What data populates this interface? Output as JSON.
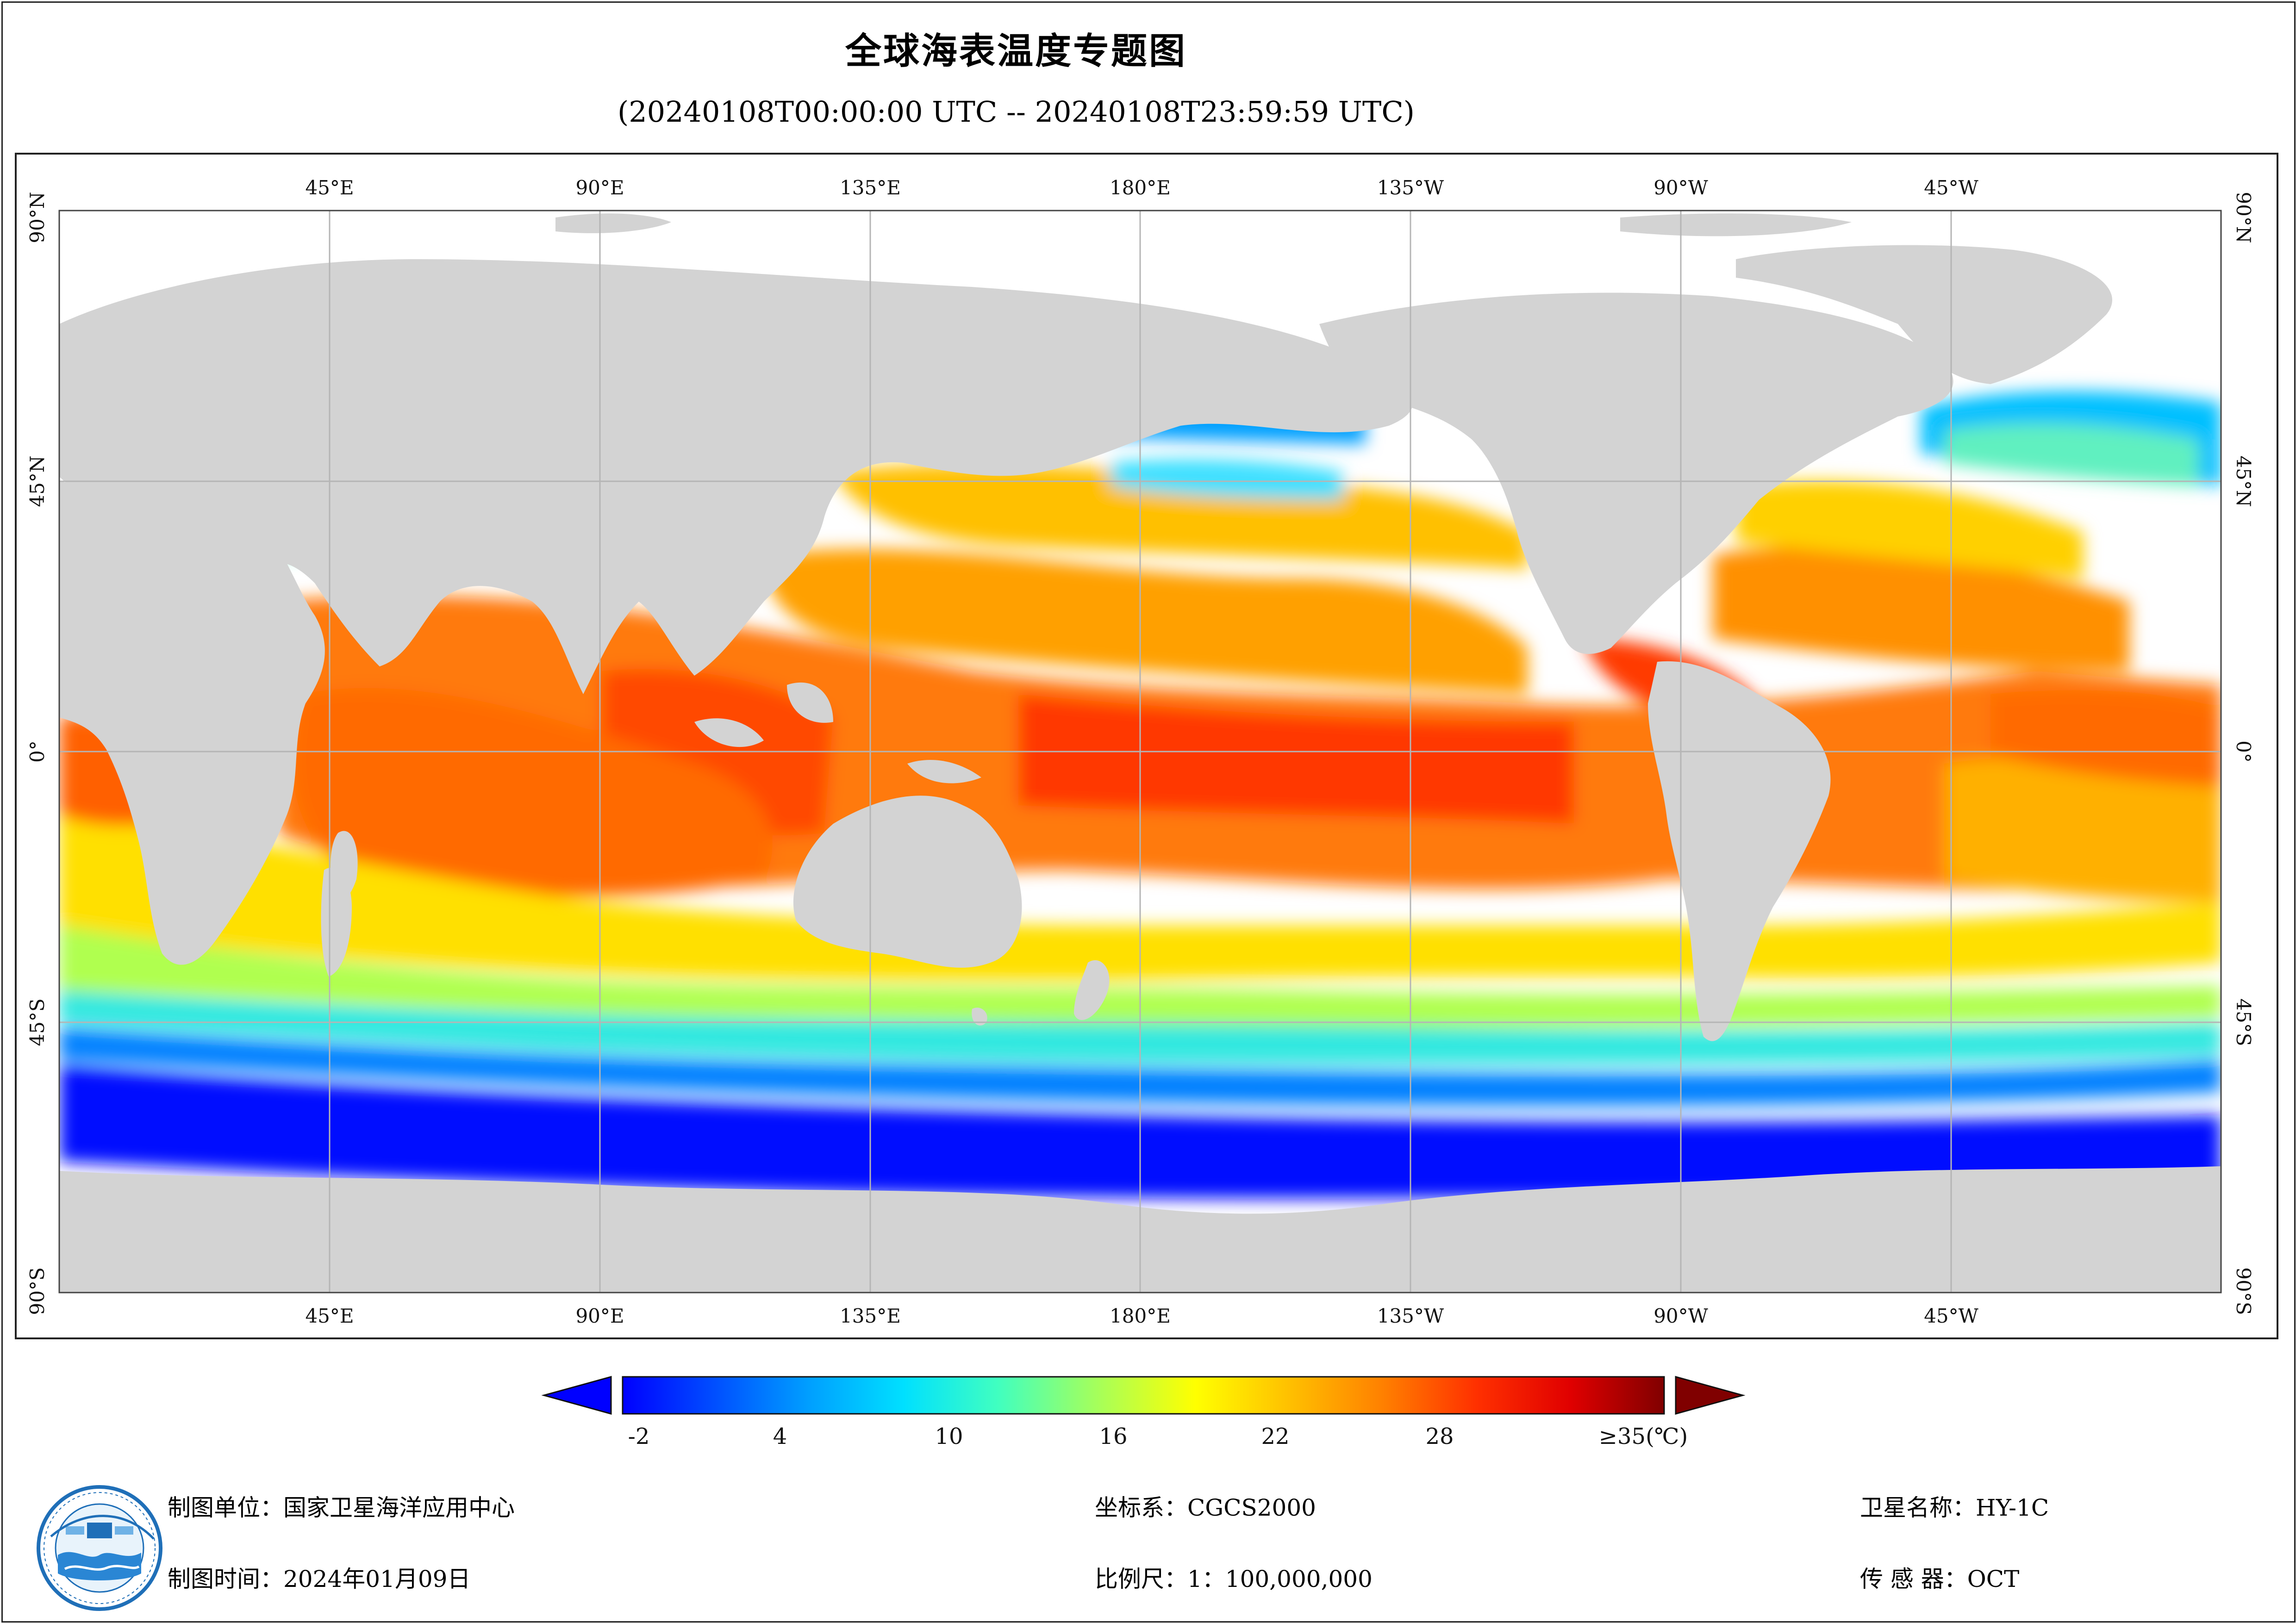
{
  "title": "全球海表温度专题图",
  "subtitle": "(20240108T00:00:00 UTC -- 20240108T23:59:59 UTC)",
  "map": {
    "top_labels": [
      "45°E",
      "90°E",
      "135°E",
      "180°E",
      "135°W",
      "90°W",
      "45°W"
    ],
    "bottom_labels": [
      "45°E",
      "90°E",
      "135°E",
      "180°E",
      "135°W",
      "90°W",
      "45°W"
    ],
    "lat_labels": [
      "90°N",
      "45°N",
      "0°",
      "45°S",
      "90°S"
    ],
    "colors": {
      "land": "#d3d3d3",
      "no_data": "#ffffff",
      "grid": "#b5b5b5"
    }
  },
  "colorbar": {
    "tick_labels": [
      "-2",
      "4",
      "10",
      "16",
      "22",
      "28",
      "≥35(℃)"
    ],
    "min": -2,
    "max": 35,
    "colors": [
      "#0000ff",
      "#0050ff",
      "#00a0ff",
      "#00e0ff",
      "#40ffc0",
      "#a0ff60",
      "#ffff00",
      "#ffc000",
      "#ff8000",
      "#ff3000",
      "#e00000",
      "#800000"
    ],
    "under_color": "#0000ff",
    "over_color": "#800000"
  },
  "footer": {
    "org": "制图单位：国家卫星海洋应用中心",
    "date": "制图时间：2024年01月09日",
    "crs": "坐标系：CGCS2000",
    "scale": "比例尺：1：100,000,000",
    "satellite": "卫星名称：HY-1C",
    "sensor": "传 感 器：OCT"
  },
  "logo": {
    "icon": "nsoas-logo-icon"
  }
}
